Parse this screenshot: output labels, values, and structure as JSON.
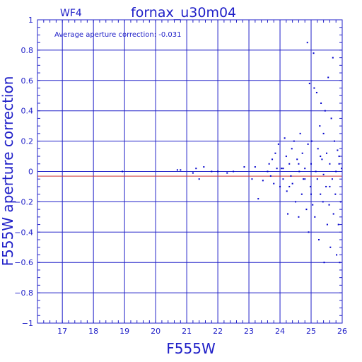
{
  "chart_data": {
    "type": "scatter",
    "chip_label": "WF4",
    "title": "fornax_u30m04",
    "annotation": "Average aperture correction:  -0.031",
    "xlabel": "F555W",
    "ylabel": "F555W aperture correction",
    "xlim": [
      16.2,
      26
    ],
    "ylim": [
      -1,
      1
    ],
    "xticks": [
      17,
      18,
      19,
      20,
      21,
      22,
      23,
      24,
      25,
      26
    ],
    "yticks": [
      -1,
      -0.8,
      -0.6,
      -0.4,
      -0.2,
      0,
      0.2,
      0.4,
      0.6,
      0.8,
      1
    ],
    "ytick_labels": [
      "−1",
      "−0.8",
      "−0.6",
      "−0.4",
      "−0.2",
      "0",
      "0.2",
      "0.4",
      "0.6",
      "0.8",
      "1"
    ],
    "grid": true,
    "average_line": -0.031,
    "colors": {
      "axes": "#2020c8",
      "points": "#0000cc",
      "average_line": "#cc3030",
      "background": "#ffffff"
    },
    "points": [
      [
        18.93,
        0.0
      ],
      [
        20.7,
        0.01
      ],
      [
        20.8,
        0.01
      ],
      [
        21.2,
        -0.01
      ],
      [
        21.3,
        0.02
      ],
      [
        21.4,
        -0.05
      ],
      [
        21.55,
        0.03
      ],
      [
        21.8,
        0.0
      ],
      [
        22.0,
        0.0
      ],
      [
        22.3,
        -0.01
      ],
      [
        22.5,
        0.0
      ],
      [
        22.85,
        0.03
      ],
      [
        23.1,
        -0.05
      ],
      [
        23.2,
        0.03
      ],
      [
        23.3,
        -0.18
      ],
      [
        23.45,
        -0.06
      ],
      [
        23.6,
        0.0
      ],
      [
        23.65,
        0.05
      ],
      [
        23.7,
        -0.03
      ],
      [
        23.75,
        0.08
      ],
      [
        23.8,
        -0.08
      ],
      [
        23.85,
        0.12
      ],
      [
        23.9,
        0.02
      ],
      [
        23.95,
        0.18
      ],
      [
        24.0,
        -0.1
      ],
      [
        24.05,
        0.02
      ],
      [
        24.1,
        -0.05
      ],
      [
        24.15,
        0.22
      ],
      [
        24.2,
        0.1
      ],
      [
        24.22,
        -0.13
      ],
      [
        24.25,
        -0.28
      ],
      [
        24.3,
        0.05
      ],
      [
        24.35,
        -0.03
      ],
      [
        24.38,
        0.15
      ],
      [
        24.4,
        -0.08
      ],
      [
        24.45,
        0.2
      ],
      [
        24.5,
        -0.2
      ],
      [
        24.55,
        0.08
      ],
      [
        24.6,
        -0.3
      ],
      [
        24.62,
        0.0
      ],
      [
        24.65,
        0.25
      ],
      [
        24.7,
        -0.15
      ],
      [
        24.72,
        0.12
      ],
      [
        24.75,
        -0.05
      ],
      [
        24.8,
        0.02
      ],
      [
        24.85,
        -0.25
      ],
      [
        24.88,
        0.85
      ],
      [
        24.9,
        0.18
      ],
      [
        24.92,
        -0.4
      ],
      [
        24.95,
        0.58
      ],
      [
        24.98,
        -0.1
      ],
      [
        25.0,
        0.05
      ],
      [
        25.02,
        0.2
      ],
      [
        25.05,
        -0.22
      ],
      [
        25.08,
        0.78
      ],
      [
        25.1,
        0.55
      ],
      [
        25.12,
        -0.3
      ],
      [
        25.15,
        0.0
      ],
      [
        25.18,
        0.52
      ],
      [
        25.2,
        -0.05
      ],
      [
        25.22,
        0.15
      ],
      [
        25.25,
        -0.45
      ],
      [
        25.28,
        0.3
      ],
      [
        25.3,
        -0.15
      ],
      [
        25.32,
        0.45
      ],
      [
        25.35,
        0.08
      ],
      [
        25.38,
        -0.2
      ],
      [
        25.4,
        0.25
      ],
      [
        25.42,
        -0.6
      ],
      [
        25.45,
        0.4
      ],
      [
        25.48,
        -0.1
      ],
      [
        25.5,
        0.12
      ],
      [
        25.52,
        -0.35
      ],
      [
        25.55,
        0.62
      ],
      [
        25.58,
        -0.22
      ],
      [
        25.6,
        0.05
      ],
      [
        25.62,
        -0.5
      ],
      [
        25.65,
        0.35
      ],
      [
        25.68,
        -0.05
      ],
      [
        25.7,
        0.75
      ],
      [
        25.72,
        -0.28
      ],
      [
        25.75,
        0.2
      ],
      [
        25.78,
        -0.15
      ],
      [
        25.8,
        0.0
      ],
      [
        25.82,
        -0.55
      ],
      [
        25.85,
        0.14
      ],
      [
        25.88,
        -0.35
      ],
      [
        25.9,
        0.05
      ],
      [
        25.92,
        -0.6
      ],
      [
        25.95,
        -0.2
      ],
      [
        25.98,
        0.02
      ],
      [
        24.3,
        -0.1
      ],
      [
        24.6,
        0.05
      ],
      [
        25.0,
        -0.15
      ],
      [
        25.3,
        0.1
      ],
      [
        25.6,
        -0.1
      ],
      [
        25.9,
        0.1
      ],
      [
        24.1,
        0.02
      ],
      [
        24.8,
        -0.05
      ],
      [
        25.4,
        -0.02
      ]
    ]
  }
}
